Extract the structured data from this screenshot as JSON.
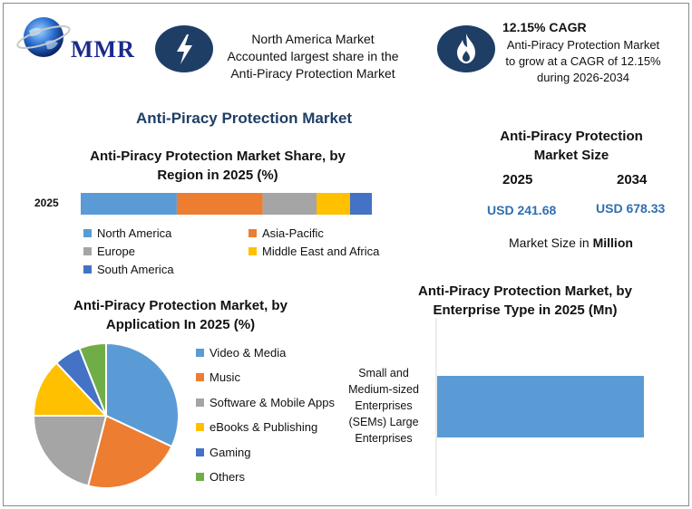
{
  "brand": {
    "logo_text": "MMR"
  },
  "header": {
    "info1": [
      "North America Market",
      "Accounted largest share in the",
      "Anti-Piracy Protection Market"
    ],
    "info1_icon": "lightning-icon",
    "cagr_icon": "flame-icon",
    "cagr_title": "12.15% CAGR",
    "cagr_body": [
      "Anti-Piracy Protection Market",
      "to grow at a CAGR of 12.15%",
      "during 2026-2034"
    ]
  },
  "main_title": "Anti-Piracy Protection Market",
  "market_size": {
    "title": [
      "Anti-Piracy Protection",
      "Market Size"
    ],
    "year1": "2025",
    "year2": "2034",
    "value1": "USD 241.68",
    "value2": "USD 678.33",
    "unit_prefix": "Market Size in ",
    "unit_bold": "Million"
  },
  "colors": {
    "north_america": "#5b9bd5",
    "asia_pacific": "#ed7d31",
    "europe": "#a5a5a5",
    "mea": "#ffc000",
    "south_america": "#4472c4",
    "others": "#70ad47",
    "badge": "#1f3e66",
    "title": "#1f3e66"
  },
  "chart_data": [
    {
      "type": "bar",
      "orientation": "horizontal-stacked",
      "title": "Anti-Piracy Protection Market Share, by Region in 2025 (%)",
      "title_lines": [
        "Anti-Piracy Protection Market Share, by",
        "Region in 2025 (%)"
      ],
      "categories": [
        "2025"
      ],
      "series": [
        {
          "name": "North America",
          "values": [
            33
          ],
          "color": "#5b9bd5"
        },
        {
          "name": "Asia-Pacific",
          "values": [
            29.5
          ],
          "color": "#ed7d31"
        },
        {
          "name": "Europe",
          "values": [
            18.5
          ],
          "color": "#a5a5a5"
        },
        {
          "name": "Middle East and Africa",
          "values": [
            11.5
          ],
          "color": "#ffc000"
        },
        {
          "name": "South America",
          "values": [
            7.5
          ],
          "color": "#4472c4"
        }
      ],
      "legend": "bottom"
    },
    {
      "type": "pie",
      "title": "Anti-Piracy Protection Market, by Application In 2025 (%)",
      "title_lines": [
        "Anti-Piracy Protection Market, by",
        "Application In 2025 (%)"
      ],
      "slices": [
        {
          "label": "Video & Media",
          "value": 32,
          "color": "#5b9bd5"
        },
        {
          "label": "Music",
          "value": 22,
          "color": "#ed7d31"
        },
        {
          "label": "Software & Mobile Apps",
          "value": 21,
          "color": "#a5a5a5"
        },
        {
          "label": "eBooks & Publishing",
          "value": 13,
          "color": "#ffc000"
        },
        {
          "label": "Gaming",
          "value": 6,
          "color": "#4472c4"
        },
        {
          "label": "Others",
          "value": 6,
          "color": "#70ad47"
        }
      ],
      "legend": "right"
    },
    {
      "type": "bar",
      "orientation": "horizontal",
      "title": "Anti-Piracy Protection Market, by Enterprise Type in 2025 (Mn)",
      "title_lines": [
        "Anti-Piracy Protection Market, by",
        "Enterprise Type in 2025 (Mn)"
      ],
      "categories": [
        "Small and Medium-sized Enterprises (SEMs) Large Enterprises"
      ],
      "category_lines": [
        "Small and",
        "Medium-sized",
        "Enterprises",
        "(SEMs) Large",
        "Enterprises"
      ],
      "values": [
        100
      ],
      "color": "#5b9bd5"
    }
  ]
}
